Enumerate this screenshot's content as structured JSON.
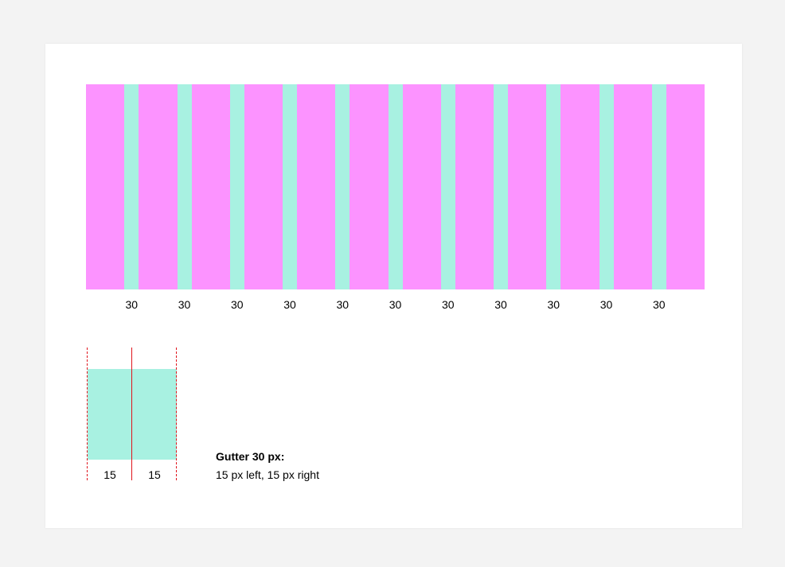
{
  "grid": {
    "column_color": "#fc93ff",
    "gutter_color": "#a8f1e1",
    "gutter_labels": [
      "30",
      "30",
      "30",
      "30",
      "30",
      "30",
      "30",
      "30",
      "30",
      "30",
      "30"
    ]
  },
  "gutter_detail": {
    "half_left": "15",
    "half_right": "15",
    "guide_color": "#e0141c",
    "title": "Gutter 30 px:",
    "description": "15 px left, 15 px right"
  }
}
